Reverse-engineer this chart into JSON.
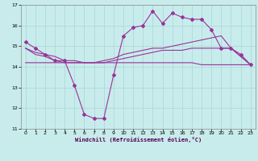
{
  "title": "",
  "xlabel": "Windchill (Refroidissement éolien,°C)",
  "ylabel": "",
  "background_color": "#c8ecec",
  "grid_color": "#b0d8d8",
  "line_color": "#993399",
  "marker_color": "#993399",
  "xlim": [
    -0.5,
    23.5
  ],
  "ylim": [
    11,
    17
  ],
  "yticks": [
    11,
    12,
    13,
    14,
    15,
    16,
    17
  ],
  "xticks": [
    0,
    1,
    2,
    3,
    4,
    5,
    6,
    7,
    8,
    9,
    10,
    11,
    12,
    13,
    14,
    15,
    16,
    17,
    18,
    19,
    20,
    21,
    22,
    23
  ],
  "x": [
    0,
    1,
    2,
    3,
    4,
    5,
    6,
    7,
    8,
    9,
    10,
    11,
    12,
    13,
    14,
    15,
    16,
    17,
    18,
    19,
    20,
    21,
    22,
    23
  ],
  "line1": [
    15.2,
    14.9,
    14.6,
    14.3,
    14.3,
    13.1,
    11.7,
    11.5,
    11.5,
    13.6,
    15.5,
    15.9,
    16.0,
    16.7,
    16.1,
    16.6,
    16.4,
    16.3,
    16.3,
    15.8,
    14.9,
    14.9,
    14.6,
    14.1
  ],
  "line2": [
    14.9,
    14.6,
    14.5,
    14.3,
    14.2,
    14.2,
    14.2,
    14.2,
    14.3,
    14.4,
    14.6,
    14.7,
    14.8,
    14.9,
    14.9,
    15.0,
    15.1,
    15.2,
    15.3,
    15.4,
    15.5,
    14.9,
    14.5,
    14.1
  ],
  "line3": [
    14.9,
    14.7,
    14.6,
    14.5,
    14.3,
    14.3,
    14.2,
    14.2,
    14.2,
    14.3,
    14.4,
    14.5,
    14.6,
    14.7,
    14.8,
    14.8,
    14.8,
    14.9,
    14.9,
    14.9,
    14.9,
    14.9,
    14.5,
    14.1
  ],
  "line4": [
    14.2,
    14.2,
    14.2,
    14.2,
    14.2,
    14.2,
    14.2,
    14.2,
    14.2,
    14.2,
    14.2,
    14.2,
    14.2,
    14.2,
    14.2,
    14.2,
    14.2,
    14.2,
    14.1,
    14.1,
    14.1,
    14.1,
    14.1,
    14.1
  ],
  "xlabel_fontsize": 5.0,
  "tick_fontsize": 4.5
}
